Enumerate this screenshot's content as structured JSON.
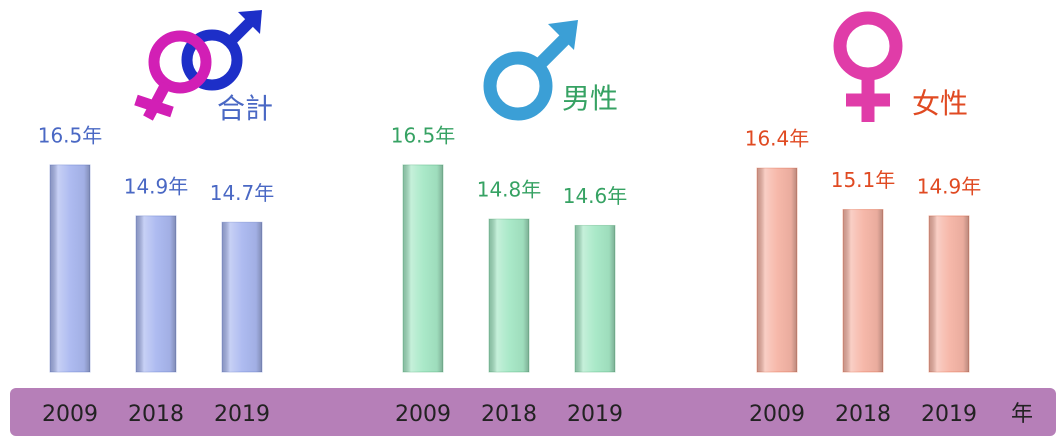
{
  "chart_data": [
    {
      "type": "bar",
      "title": "合計",
      "categories": [
        "2009",
        "2018",
        "2019"
      ],
      "values": [
        16.5,
        14.9,
        14.7
      ],
      "value_labels": [
        "16.5年",
        "14.9年",
        "14.7年"
      ],
      "color": "#aab8f0",
      "label_color": "#4a68c4",
      "ylim": [
        10,
        17
      ]
    },
    {
      "type": "bar",
      "title": "男性",
      "categories": [
        "2009",
        "2018",
        "2019"
      ],
      "values": [
        16.5,
        14.8,
        14.6
      ],
      "value_labels": [
        "16.5年",
        "14.8年",
        "14.6年"
      ],
      "color": "#a6e8c6",
      "label_color": "#36a263",
      "ylim": [
        10,
        17
      ]
    },
    {
      "type": "bar",
      "title": "女性",
      "categories": [
        "2009",
        "2018",
        "2019"
      ],
      "values": [
        16.4,
        15.1,
        14.9
      ],
      "value_labels": [
        "16.4年",
        "15.1年",
        "14.9年"
      ],
      "color": "#f6b5a6",
      "label_color": "#e04a22",
      "ylim": [
        10,
        17
      ],
      "x_label": "年"
    }
  ]
}
